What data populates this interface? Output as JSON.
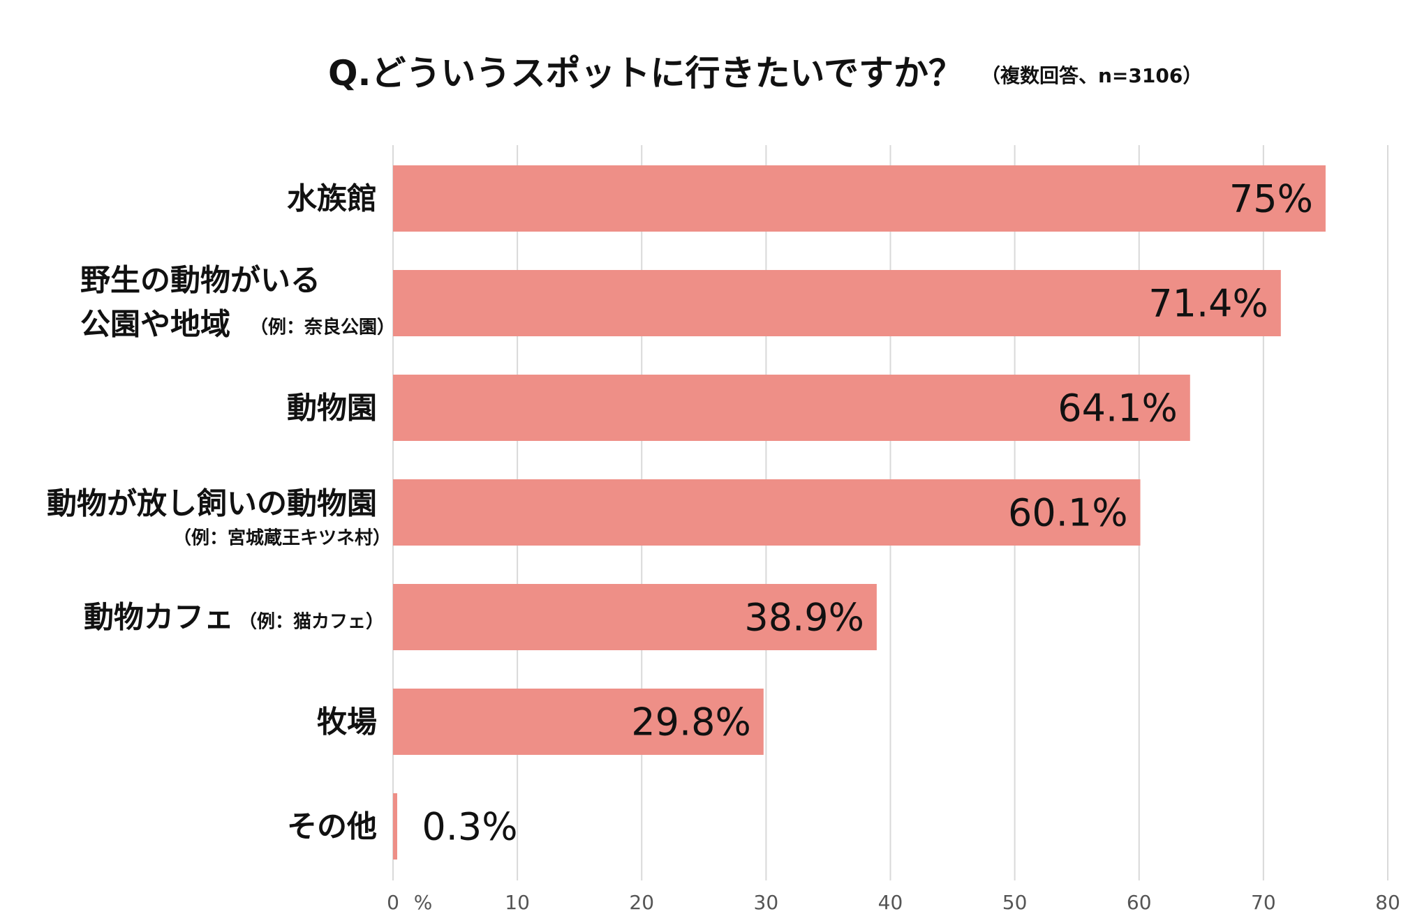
{
  "chart_data": {
    "type": "bar",
    "orientation": "horizontal",
    "title": "Q.どういうスポットに行きたいですか？",
    "subtitle": "（複数回答、n=3106）",
    "unit_label": "%",
    "xlim": [
      0,
      80
    ],
    "ticks": [
      0,
      10,
      20,
      30,
      40,
      50,
      60,
      70,
      80
    ],
    "grid": true,
    "bar_color": "#ee8f87",
    "categories": [
      {
        "lines": [
          "水族館"
        ],
        "note": "",
        "value": 75,
        "label": "75%"
      },
      {
        "lines": [
          "野生の動物がいる",
          "公園や地域"
        ],
        "note": "（例：奈良公園）",
        "value": 71.4,
        "label": "71.4%"
      },
      {
        "lines": [
          "動物園"
        ],
        "note": "",
        "value": 64.1,
        "label": "64.1%"
      },
      {
        "lines": [
          "動物が放し飼いの動物園"
        ],
        "note": "（例：宮城蔵王キツネ村）",
        "value": 60.1,
        "label": "60.1%"
      },
      {
        "lines": [
          "動物カフェ"
        ],
        "note": "（例：猫カフェ）",
        "value": 38.9,
        "label": "38.9%"
      },
      {
        "lines": [
          "牧場"
        ],
        "note": "",
        "value": 29.8,
        "label": "29.8%"
      },
      {
        "lines": [
          "その他"
        ],
        "note": "",
        "value": 0.3,
        "label": "0.3%"
      }
    ]
  }
}
